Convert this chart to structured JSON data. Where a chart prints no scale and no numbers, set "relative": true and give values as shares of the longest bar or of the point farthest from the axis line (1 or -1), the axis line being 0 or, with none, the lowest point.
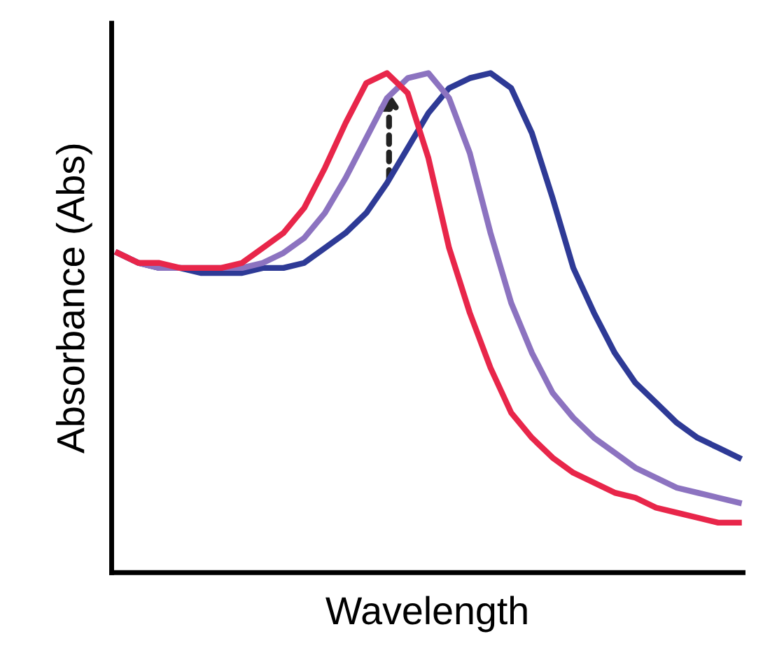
{
  "chart_data": {
    "type": "line",
    "relative": true,
    "xlabel": "Wavelength",
    "ylabel": "Absorbance (Abs)",
    "categories": [
      null,
      null,
      null,
      null,
      null,
      null,
      null,
      null,
      null,
      null,
      null,
      null,
      null,
      null,
      null,
      null,
      null,
      null,
      null,
      null,
      null,
      null,
      null,
      null,
      null,
      null,
      null,
      null,
      null,
      null,
      null
    ],
    "series": [
      {
        "color": "#2e3a96",
        "values": [
          0.64,
          0.62,
          0.61,
          0.61,
          0.6,
          0.6,
          0.6,
          0.61,
          0.61,
          0.62,
          0.65,
          0.68,
          0.72,
          0.78,
          0.85,
          0.92,
          0.97,
          0.99,
          1.0,
          0.97,
          0.88,
          0.75,
          0.61,
          0.52,
          0.44,
          0.38,
          0.34,
          0.3,
          0.27,
          0.25,
          0.23
        ]
      },
      {
        "color": "#8c73c0",
        "values": [
          0.64,
          0.62,
          0.61,
          0.61,
          0.61,
          0.61,
          0.61,
          0.62,
          0.64,
          0.67,
          0.72,
          0.79,
          0.87,
          0.95,
          0.99,
          1.0,
          0.95,
          0.84,
          0.68,
          0.54,
          0.44,
          0.36,
          0.31,
          0.27,
          0.24,
          0.21,
          0.19,
          0.17,
          0.16,
          0.15,
          0.14
        ]
      },
      {
        "color": "#e8264a",
        "values": [
          0.64,
          0.62,
          0.62,
          0.61,
          0.61,
          0.61,
          0.62,
          0.65,
          0.68,
          0.73,
          0.81,
          0.9,
          0.98,
          1.0,
          0.96,
          0.83,
          0.65,
          0.52,
          0.41,
          0.32,
          0.27,
          0.23,
          0.2,
          0.18,
          0.16,
          0.15,
          0.13,
          0.12,
          0.11,
          0.1,
          0.1
        ]
      }
    ],
    "line_style": "solid",
    "marker": "none"
  }
}
